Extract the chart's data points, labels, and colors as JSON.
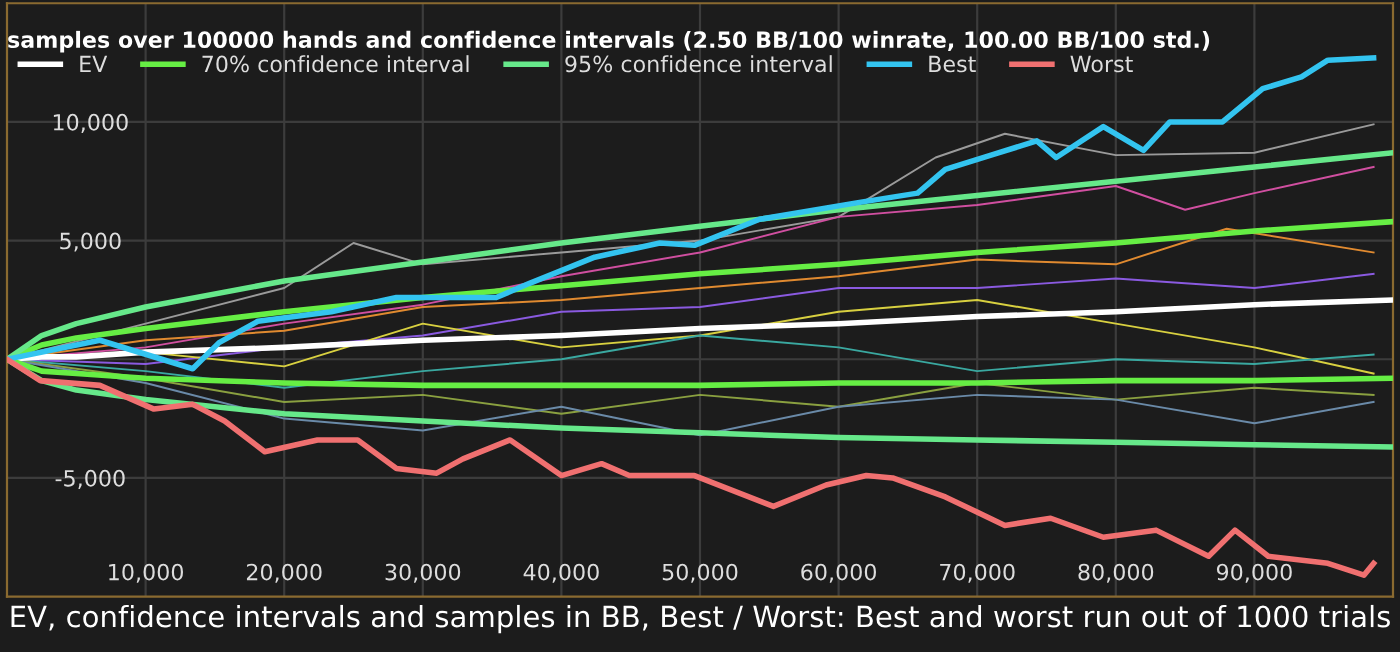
{
  "chart_data": {
    "type": "line",
    "title": "samples over 100000 hands and confidence intervals (2.50 BB/100 winrate, 100.00 BB/100 std.)",
    "xlabel": "EV, confidence intervals and samples in BB, Best / Worst: Best and worst run out of 1000 trials",
    "xlim": [
      0,
      100000
    ],
    "ylim": [
      -10000,
      15000
    ],
    "xticks": [
      {
        "value": 10000,
        "label": "10,000"
      },
      {
        "value": 20000,
        "label": "20,000"
      },
      {
        "value": 30000,
        "label": "30,000"
      },
      {
        "value": 40000,
        "label": "40,000"
      },
      {
        "value": 50000,
        "label": "50,000"
      },
      {
        "value": 60000,
        "label": "60,000"
      },
      {
        "value": 70000,
        "label": "70,000"
      },
      {
        "value": 80000,
        "label": "80,000"
      },
      {
        "value": 90000,
        "label": "90,000"
      }
    ],
    "yticks": [
      {
        "value": -5000,
        "label": "-5,000"
      },
      {
        "value": 0,
        "label": null
      },
      {
        "value": 5000,
        "label": "5,000"
      },
      {
        "value": 10000,
        "label": "10,000"
      }
    ],
    "grid": true,
    "legend": "top left",
    "line_style": "solid",
    "marker": "none",
    "series": [
      {
        "color": "#9a9a9a",
        "x": [
          0,
          10000,
          20000,
          25000,
          30000,
          40000,
          50000,
          60000,
          67000,
          72000,
          80000,
          90000,
          98600
        ],
        "values": [
          0,
          1500,
          3000,
          4900,
          4000,
          4500,
          5000,
          6000,
          8500,
          9500,
          8600,
          8700,
          9900
        ]
      },
      {
        "color": "#d04fa0",
        "x": [
          0,
          10000,
          20000,
          30000,
          40000,
          50000,
          60000,
          70000,
          80000,
          85000,
          90000,
          98600
        ],
        "values": [
          0,
          500,
          1500,
          2300,
          3500,
          4500,
          6000,
          6500,
          7300,
          6300,
          7000,
          8100
        ]
      },
      {
        "color": "#e08a30",
        "x": [
          0,
          10000,
          20000,
          30000,
          40000,
          50000,
          60000,
          70000,
          80000,
          88000,
          98600
        ],
        "values": [
          0,
          800,
          1200,
          2200,
          2500,
          3000,
          3500,
          4200,
          4000,
          5500,
          4500
        ]
      },
      {
        "color": "#8a5ae0",
        "x": [
          0,
          10000,
          20000,
          30000,
          40000,
          50000,
          60000,
          70000,
          80000,
          90000,
          98600
        ],
        "values": [
          0,
          -200,
          500,
          1000,
          2000,
          2200,
          3000,
          3000,
          3400,
          3000,
          3600
        ]
      },
      {
        "color": "#d8d040",
        "x": [
          0,
          10000,
          20000,
          30000,
          40000,
          50000,
          60000,
          70000,
          80000,
          90000,
          98600
        ],
        "values": [
          0,
          300,
          -300,
          1500,
          500,
          1000,
          2000,
          2500,
          1500,
          500,
          -600
        ]
      },
      {
        "color": "#3aa8a0",
        "x": [
          0,
          10000,
          20000,
          30000,
          40000,
          50000,
          60000,
          70000,
          80000,
          90000,
          98600
        ],
        "values": [
          0,
          -500,
          -1200,
          -500,
          0,
          1000,
          500,
          -500,
          0,
          -200,
          200
        ]
      },
      {
        "color": "#8aa040",
        "x": [
          0,
          10000,
          20000,
          30000,
          40000,
          50000,
          60000,
          70000,
          80000,
          90000,
          98600
        ],
        "values": [
          0,
          -800,
          -1800,
          -1500,
          -2300,
          -1500,
          -2000,
          -1000,
          -1700,
          -1200,
          -1500
        ]
      },
      {
        "color": "#6a8aa8",
        "x": [
          0,
          10000,
          20000,
          30000,
          40000,
          50000,
          60000,
          70000,
          80000,
          90000,
          98600
        ],
        "values": [
          0,
          -1000,
          -2500,
          -3000,
          -2000,
          -3200,
          -2000,
          -1500,
          -1700,
          -2700,
          -1800
        ]
      },
      {
        "name": "EV",
        "color": "#ffffff",
        "x": [
          0,
          2500,
          5000,
          10000,
          20000,
          30000,
          40000,
          50000,
          60000,
          70000,
          80000,
          90000,
          100000
        ],
        "values": [
          0,
          100,
          100,
          300,
          500,
          800,
          1000,
          1300,
          1500,
          1800,
          2000,
          2300,
          2500
        ]
      },
      {
        "name": "70% confidence interval",
        "color": "#66ee44",
        "x": [
          0,
          2500,
          5000,
          10000,
          20000,
          30000,
          40000,
          50000,
          60000,
          70000,
          80000,
          90000,
          100000
        ],
        "values": [
          0,
          600,
          900,
          1300,
          2000,
          2600,
          3100,
          3600,
          4000,
          4500,
          4900,
          5400,
          5800
        ]
      },
      {
        "color": "#66ee44",
        "x": [
          0,
          2500,
          5000,
          10000,
          20000,
          30000,
          40000,
          50000,
          60000,
          70000,
          80000,
          90000,
          100000
        ],
        "values": [
          0,
          -500,
          -600,
          -800,
          -1000,
          -1100,
          -1100,
          -1100,
          -1000,
          -1000,
          -900,
          -900,
          -800
        ]
      },
      {
        "name": "95% confidence interval",
        "color": "#66e88a",
        "x": [
          0,
          2500,
          5000,
          10000,
          20000,
          30000,
          40000,
          50000,
          60000,
          70000,
          80000,
          90000,
          100000
        ],
        "values": [
          0,
          1000,
          1500,
          2200,
          3300,
          4100,
          4900,
          5600,
          6300,
          6900,
          7500,
          8100,
          8700
        ]
      },
      {
        "color": "#66e88a",
        "x": [
          0,
          2500,
          5000,
          10000,
          20000,
          30000,
          40000,
          50000,
          60000,
          70000,
          80000,
          90000,
          100000
        ],
        "values": [
          0,
          -900,
          -1300,
          -1700,
          -2300,
          -2600,
          -2900,
          -3100,
          -3300,
          -3400,
          -3500,
          -3600,
          -3700
        ]
      },
      {
        "name": "Best",
        "color": "#33c4f0",
        "x": [
          0,
          6700,
          13400,
          15300,
          18100,
          23400,
          28100,
          32900,
          35300,
          37700,
          42400,
          47100,
          49600,
          54300,
          61400,
          65700,
          67700,
          71000,
          74300,
          75700,
          79100,
          82000,
          83900,
          87700,
          90600,
          93400,
          95300,
          98600
        ],
        "values": [
          0,
          800,
          -400,
          700,
          1600,
          2000,
          2600,
          2600,
          2600,
          3200,
          4300,
          4900,
          4800,
          5900,
          6600,
          7000,
          8000,
          8600,
          9200,
          8500,
          9800,
          8800,
          10000,
          10000,
          11400,
          11900,
          12600,
          12700
        ]
      },
      {
        "name": "Worst",
        "color": "#f07070",
        "x": [
          0,
          2400,
          6700,
          10600,
          13400,
          15700,
          18600,
          22400,
          25300,
          28100,
          31000,
          32900,
          36300,
          40000,
          42900,
          44900,
          49600,
          55300,
          59100,
          62000,
          63900,
          67700,
          72000,
          75300,
          79100,
          82900,
          86700,
          88600,
          91000,
          95300,
          97900,
          98600
        ],
        "values": [
          0,
          -900,
          -1100,
          -2100,
          -1900,
          -2600,
          -3900,
          -3400,
          -3400,
          -4600,
          -4800,
          -4200,
          -3400,
          -4900,
          -4400,
          -4900,
          -4900,
          -6200,
          -5300,
          -4900,
          -5000,
          -5800,
          -7000,
          -6700,
          -7500,
          -7200,
          -8300,
          -7200,
          -8300,
          -8600,
          -9100,
          -8600
        ]
      }
    ]
  }
}
